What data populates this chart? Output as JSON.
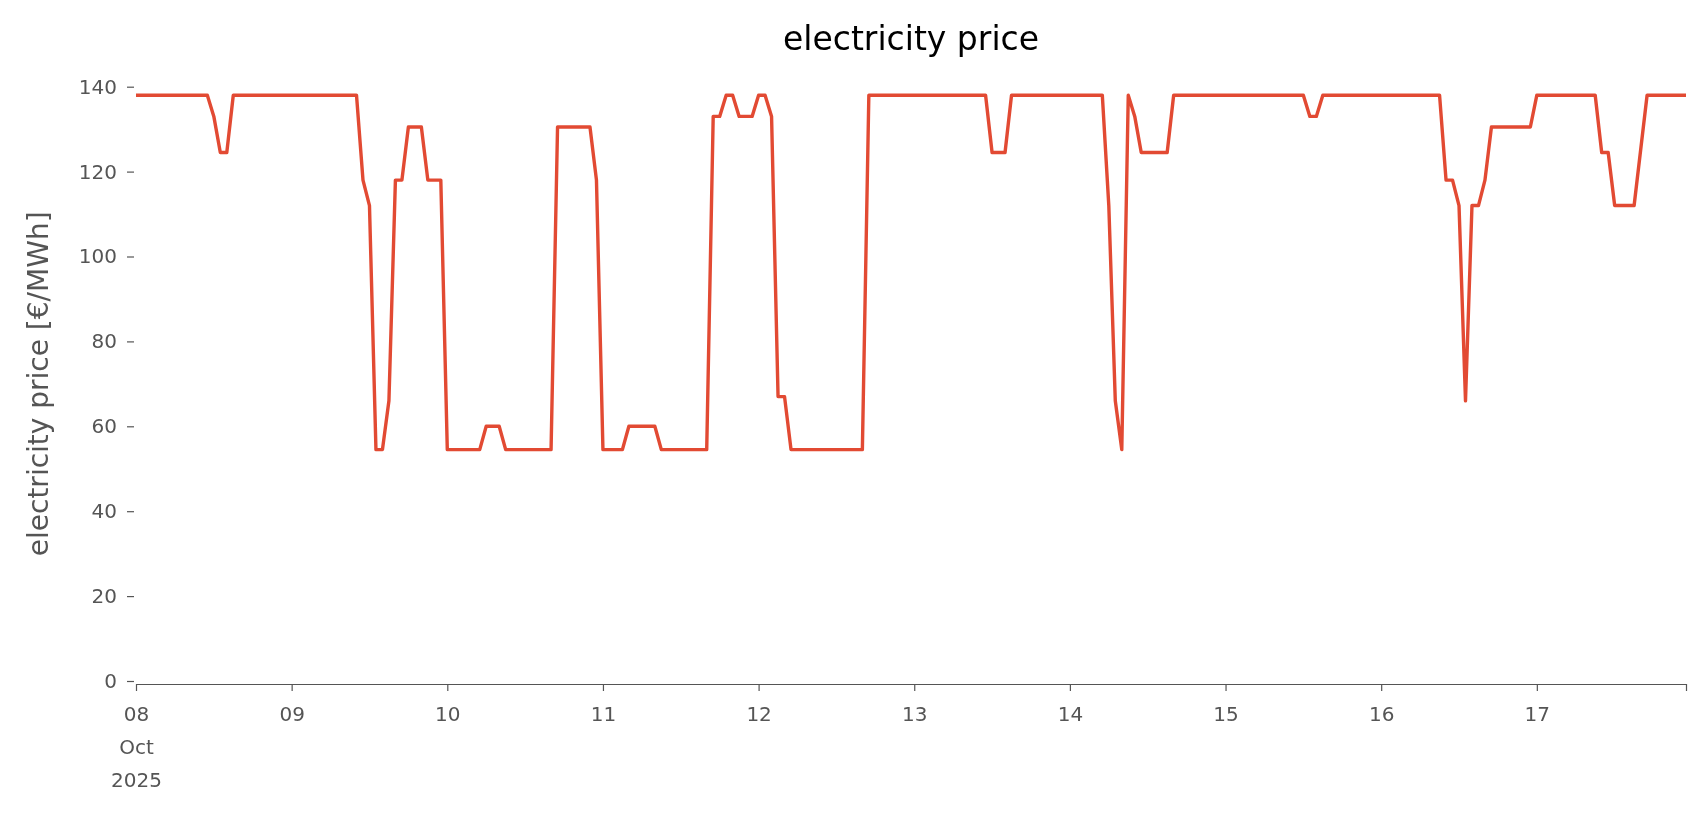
{
  "chart_data": {
    "type": "line",
    "title": "electricity price",
    "ylabel": "electricity price [€/MWh]",
    "x": [
      "2025-10-08T00:00",
      "2025-10-08T11:00",
      "2025-10-08T12:00",
      "2025-10-08T13:00",
      "2025-10-08T14:00",
      "2025-10-08T15:00",
      "2025-10-09T10:00",
      "2025-10-09T11:00",
      "2025-10-09T12:00",
      "2025-10-09T13:00",
      "2025-10-09T14:00",
      "2025-10-09T15:00",
      "2025-10-09T16:00",
      "2025-10-09T17:00",
      "2025-10-09T18:00",
      "2025-10-09T20:00",
      "2025-10-09T21:00",
      "2025-10-09T23:00",
      "2025-10-10T00:00",
      "2025-10-10T05:00",
      "2025-10-10T06:00",
      "2025-10-10T08:00",
      "2025-10-10T09:00",
      "2025-10-10T16:00",
      "2025-10-10T17:00",
      "2025-10-10T22:00",
      "2025-10-10T23:00",
      "2025-10-11T00:00",
      "2025-10-11T03:00",
      "2025-10-11T04:00",
      "2025-10-11T08:00",
      "2025-10-11T09:00",
      "2025-10-11T16:00",
      "2025-10-11T17:00",
      "2025-10-11T18:00",
      "2025-10-11T19:00",
      "2025-10-11T20:00",
      "2025-10-11T21:00",
      "2025-10-11T23:00",
      "2025-10-12T00:00",
      "2025-10-12T01:00",
      "2025-10-12T02:00",
      "2025-10-12T03:00",
      "2025-10-12T04:00",
      "2025-10-12T05:00",
      "2025-10-12T16:00",
      "2025-10-12T17:00",
      "2025-10-13T11:00",
      "2025-10-13T12:00",
      "2025-10-13T14:00",
      "2025-10-13T15:00",
      "2025-10-14T05:00",
      "2025-10-14T06:00",
      "2025-10-14T07:00",
      "2025-10-14T08:00",
      "2025-10-14T09:00",
      "2025-10-14T10:00",
      "2025-10-14T11:00",
      "2025-10-14T15:00",
      "2025-10-14T16:00",
      "2025-10-15T12:00",
      "2025-10-15T13:00",
      "2025-10-15T14:00",
      "2025-10-15T15:00",
      "2025-10-16T09:00",
      "2025-10-16T10:00",
      "2025-10-16T11:00",
      "2025-10-16T12:00",
      "2025-10-16T13:00",
      "2025-10-16T14:00",
      "2025-10-16T15:00",
      "2025-10-16T16:00",
      "2025-10-16T17:00",
      "2025-10-16T23:00",
      "2025-10-17T00:00",
      "2025-10-17T09:00",
      "2025-10-17T10:00",
      "2025-10-17T11:00",
      "2025-10-17T12:00",
      "2025-10-17T15:00",
      "2025-10-17T17:00",
      "2025-10-17T23:00"
    ],
    "series": [
      {
        "color": "#e24a33",
        "values": [
          138,
          138,
          133,
          124.5,
          124.5,
          138,
          138,
          118,
          112,
          54.5,
          54.5,
          66,
          118,
          118,
          130.5,
          130.5,
          118,
          118,
          54.5,
          54.5,
          60,
          60,
          54.5,
          54.5,
          130.5,
          130.5,
          118,
          54.5,
          54.5,
          60,
          60,
          54.5,
          54.5,
          133,
          133,
          138,
          138,
          133,
          133,
          138,
          138,
          133,
          67,
          67,
          54.5,
          54.5,
          138,
          138,
          124.5,
          124.5,
          138,
          138,
          112,
          66,
          54.5,
          138,
          133,
          124.5,
          124.5,
          138,
          138,
          133,
          133,
          138,
          138,
          118,
          118,
          112,
          66,
          112,
          112,
          118,
          130.5,
          130.5,
          138,
          138,
          124.5,
          124.5,
          112,
          112,
          138,
          138
        ]
      }
    ],
    "xlim": [
      "2025-10-08T00:00",
      "2025-10-17T23:00"
    ],
    "xticks": [
      {
        "value": "2025-10-08T00:00",
        "label": "08\nOct\n2025"
      },
      {
        "value": "2025-10-09T00:00",
        "label": "09"
      },
      {
        "value": "2025-10-10T00:00",
        "label": "10"
      },
      {
        "value": "2025-10-11T00:00",
        "label": "11"
      },
      {
        "value": "2025-10-12T00:00",
        "label": "12"
      },
      {
        "value": "2025-10-13T00:00",
        "label": "13"
      },
      {
        "value": "2025-10-14T00:00",
        "label": "14"
      },
      {
        "value": "2025-10-15T00:00",
        "label": "15"
      },
      {
        "value": "2025-10-16T00:00",
        "label": "16"
      },
      {
        "value": "2025-10-17T00:00",
        "label": "17"
      },
      {
        "value": "2025-10-17T23:00",
        "label": null
      }
    ],
    "ylim": [
      0,
      140
    ],
    "yticks": [
      0,
      20,
      40,
      60,
      80,
      100,
      120,
      140
    ],
    "line_style": "solid"
  }
}
